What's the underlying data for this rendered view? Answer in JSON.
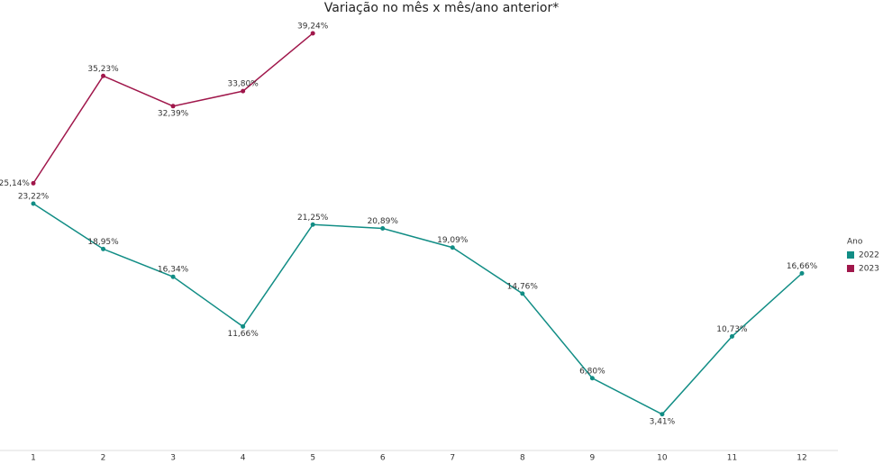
{
  "chart_data": {
    "type": "line",
    "title": "Variação no mês x mês/ano anterior*",
    "categories": [
      "1",
      "2",
      "3",
      "4",
      "5",
      "6",
      "7",
      "8",
      "9",
      "10",
      "11",
      "12"
    ],
    "ylim": [
      0,
      40
    ],
    "legend_title": "Ano",
    "legend": "right",
    "series": [
      {
        "name": "2022",
        "color": "#118d85",
        "values": [
          23.22,
          18.95,
          16.34,
          11.66,
          21.25,
          20.89,
          19.09,
          14.76,
          6.8,
          3.41,
          10.73,
          16.66
        ],
        "value_labels": [
          "23,22%",
          "18,95%",
          "16,34%",
          "11,66%",
          "21,25%",
          "20,89%",
          "19,09%",
          "14,76%",
          "6,80%",
          "3,41%",
          "10,73%",
          "16,66%"
        ]
      },
      {
        "name": "2023",
        "color": "#a0174b",
        "values": [
          25.14,
          35.23,
          32.39,
          33.8,
          39.24,
          null,
          null,
          null,
          null,
          null,
          null,
          null
        ],
        "value_labels": [
          "25,14%",
          "35,23%",
          "32,39%",
          "33,80%",
          "39,24%",
          null,
          null,
          null,
          null,
          null,
          null,
          null
        ]
      }
    ]
  }
}
